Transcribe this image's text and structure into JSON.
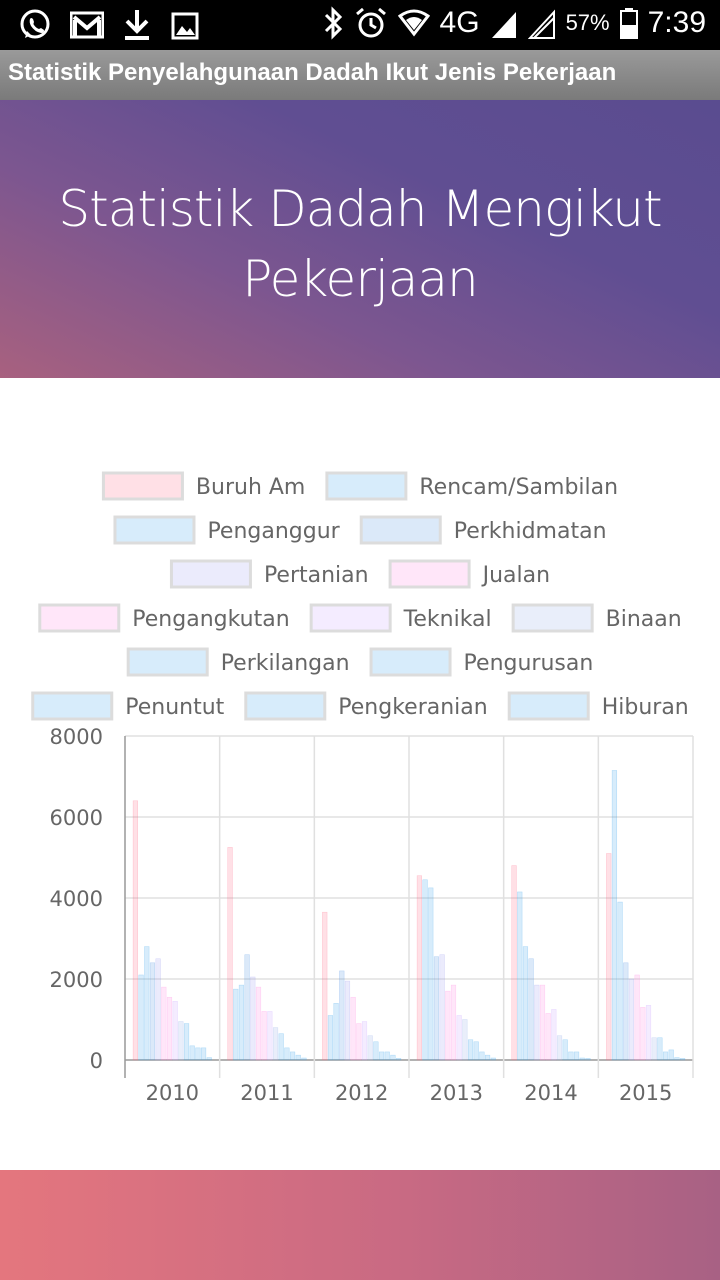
{
  "status_bar": {
    "network": "4G",
    "battery": "57%",
    "time": "7:39",
    "icons": [
      "whatsapp-icon",
      "gmail-icon",
      "download-icon",
      "image-icon",
      "bluetooth-icon",
      "alarm-icon",
      "wifi-icon",
      "signal-icon",
      "no-signal-icon",
      "battery-icon"
    ]
  },
  "app": {
    "title": "Statistik Penyelahgunaan Dadah Ikut Jenis Pekerjaan"
  },
  "hero": {
    "title": "Statistik Dadah Mengikut Pekerjaan"
  },
  "colors": {
    "hero_start": "#5a4c90",
    "hero_end": "#a8617f",
    "footer_start": "#e4767e",
    "footer_end": "#a86184"
  },
  "chart_data": {
    "type": "bar",
    "categories": [
      "2010",
      "2011",
      "2012",
      "2013",
      "2014",
      "2015"
    ],
    "ylim": [
      0,
      8000
    ],
    "yticks": [
      0,
      2000,
      4000,
      6000,
      8000
    ],
    "grid": true,
    "legend_position": "top",
    "series": [
      {
        "name": "Buruh Am",
        "color": "#ff6384",
        "values": [
          6400,
          5250,
          3650,
          4550,
          4800,
          5100
        ]
      },
      {
        "name": "Rencam/Sambilan",
        "color": "#36a2eb",
        "values": [
          2100,
          1750,
          1100,
          4450,
          4150,
          7150
        ]
      },
      {
        "name": "Penganggur",
        "color": "#36a2eb",
        "values": [
          2800,
          1850,
          1400,
          4250,
          2800,
          3900
        ]
      },
      {
        "name": "Perkhidmatan",
        "color": "#4a90e2",
        "values": [
          2400,
          2600,
          2200,
          2550,
          2500,
          2400
        ]
      },
      {
        "name": "Pertanian",
        "color": "#9999ee",
        "values": [
          2500,
          2050,
          1950,
          2600,
          1850,
          2000
        ]
      },
      {
        "name": "Jualan",
        "color": "#ff80df",
        "values": [
          1800,
          1800,
          1550,
          1700,
          1850,
          2100
        ]
      },
      {
        "name": "Pengangkutan",
        "color": "#ff80df",
        "values": [
          1550,
          1200,
          900,
          1850,
          1150,
          1300
        ]
      },
      {
        "name": "Teknikal",
        "color": "#c9a0ff",
        "values": [
          1450,
          1200,
          950,
          1100,
          1250,
          1350
        ]
      },
      {
        "name": "Binaan",
        "color": "#8fa9e8",
        "values": [
          950,
          800,
          600,
          1000,
          600,
          550
        ]
      },
      {
        "name": "Perkilangan",
        "color": "#36a2eb",
        "values": [
          900,
          650,
          450,
          500,
          500,
          550
        ]
      },
      {
        "name": "Pengurusan",
        "color": "#36a2eb",
        "values": [
          350,
          300,
          200,
          450,
          200,
          200
        ]
      },
      {
        "name": "Penuntut",
        "color": "#36a2eb",
        "values": [
          300,
          200,
          200,
          200,
          200,
          250
        ]
      },
      {
        "name": "Pengkeranian",
        "color": "#36a2eb",
        "values": [
          300,
          120,
          120,
          120,
          50,
          60
        ]
      },
      {
        "name": "Hiburan",
        "color": "#36a2eb",
        "values": [
          60,
          50,
          40,
          50,
          40,
          40
        ]
      }
    ]
  }
}
